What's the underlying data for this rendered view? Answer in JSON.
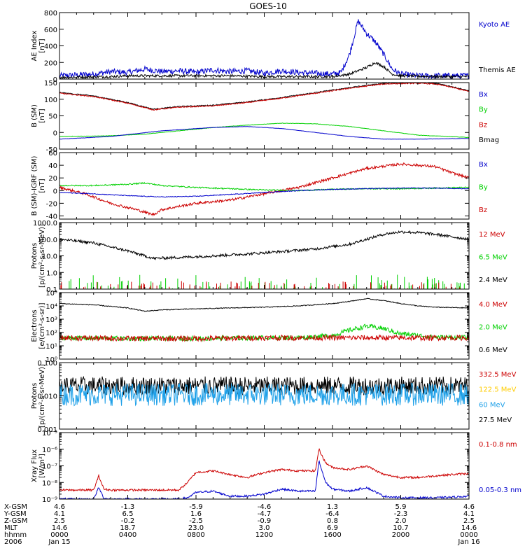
{
  "title": "GOES-10",
  "colors": {
    "red": "#cc0000",
    "green": "#00d000",
    "blue": "#0000cc",
    "black": "#000000",
    "yellow": "#ffcc00",
    "cyan": "#1ea0e8"
  },
  "footer": {
    "labels": [
      "X-GSM",
      "Y-GSM",
      "Z-GSM",
      "MLT",
      "hhmm",
      "2006"
    ],
    "columns": [
      [
        "4.6",
        "4.1",
        "2.5",
        "14.6",
        "0000",
        "Jan 15"
      ],
      [
        "-1.3",
        "6.5",
        "-0.2",
        "18.7",
        "0400",
        ""
      ],
      [
        "-5.9",
        "1.6",
        "-2.5",
        "23.0",
        "0800",
        ""
      ],
      [
        "-4.6",
        "-4.7",
        "-0.9",
        "3.0",
        "1200",
        ""
      ],
      [
        "1.3",
        "-6.4",
        "0.8",
        "6.9",
        "1600",
        ""
      ],
      [
        "5.9",
        "-2.3",
        "2.0",
        "10.7",
        "2000",
        ""
      ],
      [
        "4.6",
        "4.1",
        "2.5",
        "14.6",
        "0000",
        "Jan 16"
      ]
    ]
  },
  "chart_data": [
    {
      "id": "ae",
      "type": "line",
      "scale": "linear",
      "ylabel": [
        "AE Index",
        "[nT]"
      ],
      "ylim": [
        0,
        800
      ],
      "yticks": [
        "0",
        "200",
        "400",
        "600",
        "800"
      ],
      "x_hours": [
        0,
        24
      ],
      "legend": [
        {
          "text": "Kyoto AE",
          "color": "blue"
        },
        {
          "text": "Themis AE",
          "color": "black"
        }
      ],
      "series": [
        {
          "name": "Kyoto AE",
          "color": "blue",
          "noise": 35,
          "x": [
            0,
            2,
            3,
            4,
            5,
            6,
            7,
            8,
            9,
            10,
            11,
            12,
            13,
            14,
            15,
            16,
            16.5,
            17,
            17.5,
            18,
            18.5,
            19,
            19.5,
            20,
            21,
            22,
            23,
            24
          ],
          "y": [
            40,
            60,
            90,
            80,
            120,
            90,
            100,
            80,
            110,
            90,
            100,
            70,
            100,
            80,
            70,
            60,
            80,
            300,
            700,
            550,
            450,
            300,
            120,
            60,
            40,
            40,
            40,
            40
          ]
        },
        {
          "name": "Themis AE",
          "color": "black",
          "noise": 15,
          "x": [
            0,
            3,
            4,
            6,
            8,
            10,
            12,
            14,
            16,
            17,
            17.5,
            18,
            18.5,
            19,
            19.5,
            20,
            22,
            24
          ],
          "y": [
            20,
            30,
            40,
            40,
            40,
            40,
            30,
            30,
            30,
            60,
            100,
            140,
            200,
            150,
            60,
            40,
            30,
            30
          ]
        }
      ]
    },
    {
      "id": "bfield",
      "type": "line",
      "scale": "linear",
      "ylabel": [
        "B (SM)",
        "[nT]"
      ],
      "ylim": [
        -50,
        150
      ],
      "yticks": [
        "-50",
        "0",
        "50",
        "100",
        "150"
      ],
      "x_hours": [
        0,
        24
      ],
      "legend": [
        {
          "text": "Bx",
          "color": "blue"
        },
        {
          "text": "By",
          "color": "green"
        },
        {
          "text": "Bz",
          "color": "red"
        },
        {
          "text": "Bmag",
          "color": "black"
        }
      ],
      "series": [
        {
          "name": "Bmag",
          "color": "black",
          "noise": 1.5,
          "x": [
            0,
            2,
            4,
            5.5,
            7,
            9,
            11,
            13,
            15,
            17,
            19,
            21,
            22,
            23,
            24
          ],
          "y": [
            120,
            110,
            90,
            70,
            78,
            82,
            92,
            105,
            120,
            135,
            148,
            150,
            148,
            138,
            125
          ]
        },
        {
          "name": "Bz",
          "color": "red",
          "noise": 1.5,
          "x": [
            0,
            2,
            4,
            5.5,
            7,
            9,
            11,
            13,
            15,
            17,
            19,
            21,
            22,
            23,
            24
          ],
          "y": [
            118,
            108,
            88,
            68,
            76,
            80,
            90,
            103,
            118,
            133,
            146,
            148,
            146,
            136,
            123
          ]
        },
        {
          "name": "By",
          "color": "green",
          "noise": 0.6,
          "x": [
            0,
            3,
            5,
            7,
            9,
            11,
            13,
            15,
            17,
            19,
            21,
            24
          ],
          "y": [
            -12,
            -10,
            -5,
            5,
            15,
            22,
            28,
            26,
            18,
            5,
            -8,
            -15
          ]
        },
        {
          "name": "Bx",
          "color": "blue",
          "noise": 0.4,
          "x": [
            0,
            3,
            6,
            9,
            11,
            13,
            15,
            17,
            19,
            21,
            24
          ],
          "y": [
            -20,
            -12,
            5,
            15,
            18,
            12,
            0,
            -12,
            -20,
            -20,
            -18
          ]
        }
      ]
    },
    {
      "id": "bdiff",
      "type": "line",
      "scale": "linear",
      "ylabel": [
        "B (SM)-IGRF (SM)",
        "[nT]"
      ],
      "ylim": [
        -45,
        60
      ],
      "yticks": [
        "-40",
        "-20",
        "0",
        "20",
        "40",
        "60"
      ],
      "x_hours": [
        0,
        24
      ],
      "legend": [
        {
          "text": "Bx",
          "color": "blue"
        },
        {
          "text": "By",
          "color": "green"
        },
        {
          "text": "Bz",
          "color": "red"
        }
      ],
      "series": [
        {
          "name": "Bz",
          "color": "red",
          "noise": 2,
          "x": [
            0,
            1.5,
            3,
            4.5,
            5.5,
            6,
            7,
            8,
            10,
            12,
            14,
            16,
            18,
            20,
            21,
            22,
            23,
            24
          ],
          "y": [
            5,
            -5,
            -20,
            -30,
            -38,
            -30,
            -25,
            -20,
            -15,
            -5,
            5,
            20,
            35,
            42,
            40,
            38,
            28,
            20
          ]
        },
        {
          "name": "By",
          "color": "green",
          "noise": 1,
          "x": [
            0,
            2,
            4,
            5,
            6,
            8,
            10,
            12,
            14,
            16,
            18,
            20,
            22,
            24
          ],
          "y": [
            8,
            8,
            10,
            12,
            8,
            5,
            3,
            1,
            0,
            2,
            3,
            3,
            4,
            5
          ]
        },
        {
          "name": "Bx",
          "color": "blue",
          "noise": 0.6,
          "x": [
            0,
            2,
            4,
            6,
            8,
            10,
            12,
            14,
            16,
            18,
            20,
            22,
            24
          ],
          "y": [
            -3,
            -5,
            -8,
            -10,
            -9,
            -6,
            -3,
            0,
            2,
            3,
            4,
            4,
            3
          ]
        }
      ]
    },
    {
      "id": "protons",
      "type": "line",
      "scale": "log",
      "ylabel": [
        "Protons",
        "[p/(cm²-s-sr-MeV)]"
      ],
      "ylim": [
        0.1,
        1000
      ],
      "yticks": [
        "0.1",
        "1.0",
        "10.0",
        "100.0",
        "1000.0"
      ],
      "x_hours": [
        0,
        24
      ],
      "legend": [
        {
          "text": "12 MeV",
          "color": "red"
        },
        {
          "text": "6.5 MeV",
          "color": "green"
        },
        {
          "text": "2.4 MeV",
          "color": "black"
        }
      ],
      "series": [
        {
          "name": "2.4 MeV",
          "color": "black",
          "noise": 0.08,
          "x": [
            0,
            2,
            4,
            5.5,
            7,
            9,
            11,
            13,
            15,
            17,
            19,
            20,
            21,
            22,
            23,
            24
          ],
          "y": [
            100,
            60,
            20,
            7,
            8,
            10,
            13,
            18,
            26,
            50,
            200,
            280,
            250,
            200,
            140,
            100
          ]
        },
        {
          "name": "6.5 MeV",
          "color": "green",
          "spikes": true,
          "base": 0.1,
          "peak": 0.35
        },
        {
          "name": "12 MeV",
          "color": "red",
          "spikes": true,
          "base": 0.1,
          "peak": 0.2
        }
      ]
    },
    {
      "id": "electrons",
      "type": "line",
      "scale": "log",
      "ylabel": [
        "Electrons",
        "[e/(cm²-s-sr)]"
      ],
      "ylim": [
        1,
        100000
      ],
      "yticks": [
        "10⁰",
        "10¹",
        "10²",
        "10³",
        "10⁴",
        "10⁵"
      ],
      "x_hours": [
        0,
        24
      ],
      "legend": [
        {
          "text": "4.0 MeV",
          "color": "red"
        },
        {
          "text": "2.0 MeV",
          "color": "green"
        },
        {
          "text": "0.6 MeV",
          "color": "black"
        }
      ],
      "series": [
        {
          "name": "0.6 MeV",
          "color": "black",
          "noise": 0.03,
          "x": [
            0,
            2,
            4,
            5,
            6,
            8,
            10,
            12,
            14,
            16,
            17,
            18,
            19,
            20,
            21,
            22,
            24
          ],
          "y": [
            15000,
            12000,
            7000,
            4000,
            5000,
            6000,
            7000,
            8000,
            10000,
            15000,
            22000,
            35000,
            25000,
            15000,
            10000,
            8000,
            7000
          ]
        },
        {
          "name": "2.0 MeV",
          "color": "green",
          "noise": 0.18,
          "x": [
            0,
            4,
            8,
            12,
            14,
            16,
            17,
            18,
            19,
            20,
            22,
            24
          ],
          "y": [
            40,
            35,
            35,
            40,
            40,
            60,
            150,
            300,
            200,
            80,
            45,
            40
          ]
        },
        {
          "name": "4.0 MeV",
          "color": "red",
          "noise": 0.2,
          "x": [
            0,
            4,
            8,
            12,
            16,
            20,
            24
          ],
          "y": [
            40,
            35,
            35,
            40,
            40,
            40,
            40
          ]
        }
      ]
    },
    {
      "id": "hiprotons",
      "type": "line",
      "scale": "log",
      "ylabel": [
        "Protons",
        "[p/(cm²-s-sr-MeV)]"
      ],
      "ylim": [
        0.001,
        0.1
      ],
      "yticks": [
        "0.001",
        "0.010",
        "0.100"
      ],
      "x_hours": [
        0,
        24
      ],
      "legend": [
        {
          "text": "332.5 MeV",
          "color": "red"
        },
        {
          "text": "122.5 MeV",
          "color": "yellow"
        },
        {
          "text": "60 MeV",
          "color": "cyan"
        },
        {
          "text": "27.5 MeV",
          "color": "black"
        }
      ],
      "series": [
        {
          "name": "27.5 MeV",
          "color": "black",
          "noise": 0.28,
          "x": [
            0,
            24
          ],
          "y": [
            0.02,
            0.02
          ]
        },
        {
          "name": "60 MeV",
          "color": "cyan",
          "noise": 0.34,
          "x": [
            0,
            24
          ],
          "y": [
            0.011,
            0.011
          ]
        }
      ]
    },
    {
      "id": "xray",
      "type": "line",
      "scale": "log",
      "ylabel": [
        "Xray Flux",
        "[W/m²]"
      ],
      "ylim": [
        1e-09,
        1e-05
      ],
      "yticks": [
        "10⁻⁹",
        "10⁻⁸",
        "10⁻⁷",
        "10⁻⁶",
        "10⁻⁵"
      ],
      "x_hours": [
        0,
        24
      ],
      "legend": [
        {
          "text": "0.1-0.8 nm",
          "color": "red"
        },
        {
          "text": "0.05-0.3 nm",
          "color": "blue"
        }
      ],
      "series": [
        {
          "name": "0.1-0.8 nm",
          "color": "red",
          "noise": 0.06,
          "x": [
            0,
            2,
            2.3,
            2.6,
            3,
            7,
            7.5,
            8,
            9,
            10,
            11,
            12,
            13,
            14,
            15,
            15.2,
            15.6,
            16,
            17,
            18,
            19,
            20,
            21,
            22,
            23,
            24
          ],
          "y": [
            3.5e-09,
            3.5e-09,
            2.5e-08,
            4e-09,
            3.5e-09,
            3.5e-09,
            1e-08,
            4e-08,
            5e-08,
            3e-08,
            2e-08,
            4e-08,
            6e-08,
            5e-08,
            5e-08,
            1e-06,
            1.5e-07,
            8e-08,
            6e-08,
            1e-07,
            3e-08,
            2e-08,
            2e-08,
            2.5e-08,
            3e-08,
            3.5e-08
          ]
        },
        {
          "name": "0.05-0.3 nm",
          "color": "blue",
          "noise": 0.06,
          "x": [
            0,
            2,
            2.3,
            2.6,
            3,
            7,
            7.5,
            8,
            9,
            10,
            11,
            12,
            13,
            14,
            15,
            15.2,
            15.6,
            16,
            17,
            18,
            19,
            20,
            21,
            22,
            23,
            24
          ],
          "y": [
            1e-09,
            1e-09,
            5e-09,
            1.1e-09,
            1e-09,
            1e-09,
            1.2e-09,
            2.5e-09,
            3e-09,
            1.5e-09,
            1.5e-09,
            2e-09,
            4e-09,
            3e-09,
            3e-09,
            2e-07,
            1e-08,
            4e-09,
            3e-09,
            5e-09,
            1.5e-09,
            1.2e-09,
            1.2e-09,
            1.2e-09,
            1.3e-09,
            1.5e-09
          ]
        }
      ]
    }
  ]
}
